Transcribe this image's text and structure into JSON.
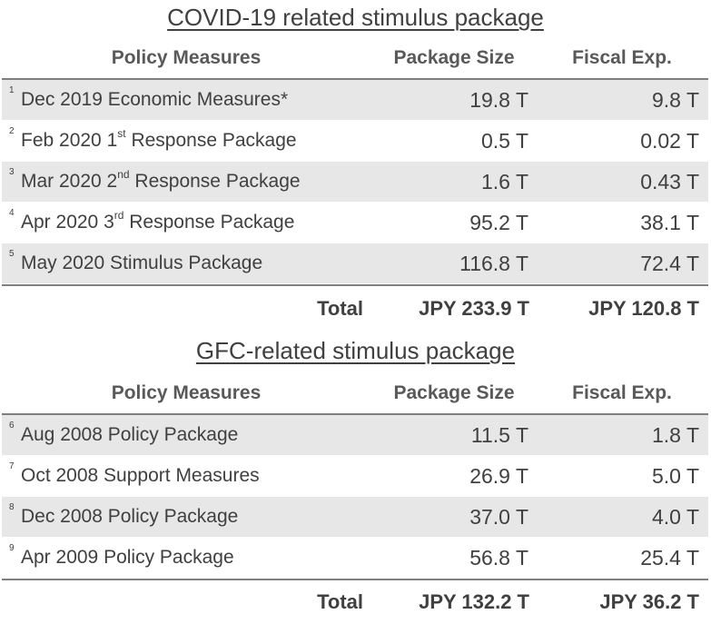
{
  "covid": {
    "title": "COVID-19 related stimulus package",
    "headers": {
      "policy": "Policy Measures",
      "size": "Package Size",
      "fiscal": "Fiscal Exp."
    },
    "rows": [
      {
        "num": "1",
        "pre": "Dec 2019 Economic Measures*",
        "sup": "",
        "post": "",
        "size": "19.8 T",
        "fiscal": "9.8 T"
      },
      {
        "num": "2",
        "pre": "Feb 2020 1",
        "sup": "st",
        "post": " Response Package",
        "size": "0.5 T",
        "fiscal": "0.02 T"
      },
      {
        "num": "3",
        "pre": "Mar 2020 2",
        "sup": "nd",
        "post": " Response Package",
        "size": "1.6 T",
        "fiscal": "0.43 T"
      },
      {
        "num": "4",
        "pre": "Apr 2020 3",
        "sup": "rd",
        "post": " Response Package",
        "size": "95.2 T",
        "fiscal": "38.1 T"
      },
      {
        "num": "5",
        "pre": "May 2020 Stimulus Package",
        "sup": "",
        "post": "",
        "size": "116.8 T",
        "fiscal": "72.4 T"
      }
    ],
    "total": {
      "label": "Total",
      "size": "JPY 233.9 T",
      "fiscal": "JPY 120.8 T"
    }
  },
  "gfc": {
    "title": "GFC-related stimulus package",
    "headers": {
      "policy": "Policy Measures",
      "size": "Package Size",
      "fiscal": "Fiscal Exp."
    },
    "rows": [
      {
        "num": "6",
        "pre": "Aug 2008 Policy Package",
        "sup": "",
        "post": "",
        "size": "11.5 T",
        "fiscal": "1.8 T"
      },
      {
        "num": "7",
        "pre": "Oct 2008 Support Measures",
        "sup": "",
        "post": "",
        "size": "26.9 T",
        "fiscal": "5.0 T"
      },
      {
        "num": "8",
        "pre": "Dec 2008 Policy Package",
        "sup": "",
        "post": "",
        "size": "37.0 T",
        "fiscal": "4.0 T"
      },
      {
        "num": "9",
        "pre": "Apr 2009 Policy Package",
        "sup": "",
        "post": "",
        "size": "56.8 T",
        "fiscal": "25.4 T"
      }
    ],
    "total": {
      "label": "Total",
      "size": "JPY 132.2 T",
      "fiscal": "JPY 36.2 T"
    }
  }
}
